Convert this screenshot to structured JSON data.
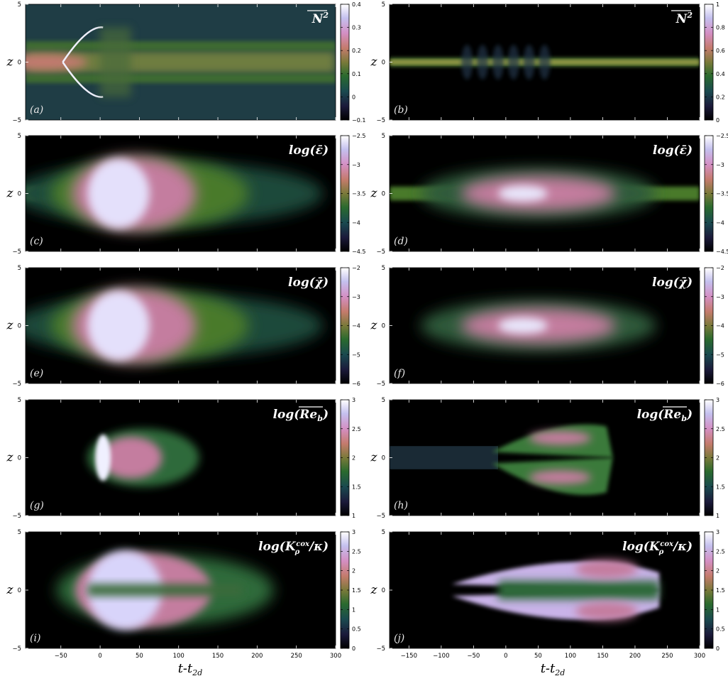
{
  "chart_data": {
    "type": "heatmap",
    "colormap": "cubehelix",
    "xlabel": "t-t",
    "xlabel_subscript": "2d",
    "ylabel": "z",
    "columns": [
      {
        "column": "left",
        "xlim": [
          -95,
          300
        ],
        "xticks": [
          -50,
          0,
          50,
          100,
          150,
          200,
          250,
          300
        ],
        "xtick_labels": [
          "−50",
          "0",
          "50",
          "100",
          "150",
          "200",
          "250",
          "300"
        ]
      },
      {
        "column": "right",
        "xlim": [
          -180,
          300
        ],
        "xticks": [
          -150,
          -100,
          -50,
          0,
          50,
          100,
          150,
          200,
          250,
          300
        ],
        "xtick_labels": [
          "−150",
          "−100",
          "−50",
          "0",
          "50",
          "100",
          "150",
          "200",
          "250",
          "300"
        ]
      }
    ],
    "ylim": [
      -5,
      5
    ],
    "yticks": [
      -5,
      0,
      5
    ],
    "ytick_labels": [
      "−5",
      "0",
      "5"
    ],
    "panels": [
      {
        "id": "a",
        "letter": "(a)",
        "title": "N² (overlined)",
        "quantity": "N2",
        "colorbar": {
          "min": -0.1,
          "max": 0.4,
          "ticks": [
            -0.1,
            0,
            0.1,
            0.2,
            0.3,
            0.4
          ],
          "tick_labels": [
            "−0.1",
            "0",
            "0.1",
            "0.2",
            "0.3",
            "0.4"
          ]
        }
      },
      {
        "id": "b",
        "letter": "(b)",
        "title": "N² (overlined)",
        "quantity": "N2",
        "colorbar": {
          "min": 0,
          "max": 1,
          "ticks": [
            0,
            0.2,
            0.4,
            0.6,
            0.8,
            1
          ],
          "tick_labels": [
            "0",
            "0.2",
            "0.4",
            "0.6",
            "0.8",
            "1"
          ]
        }
      },
      {
        "id": "c",
        "letter": "(c)",
        "title": "log(ε̄)",
        "quantity": "eps",
        "colorbar": {
          "min": -4.5,
          "max": -2.5,
          "ticks": [
            -4.5,
            -4,
            -3.5,
            -3,
            -2.5
          ],
          "tick_labels": [
            "−4.5",
            "−4",
            "−3.5",
            "−3",
            "−2.5"
          ]
        }
      },
      {
        "id": "d",
        "letter": "(d)",
        "title": "log(ε̄)",
        "quantity": "eps",
        "colorbar": {
          "min": -4.5,
          "max": -2.5,
          "ticks": [
            -4.5,
            -4,
            -3.5,
            -3,
            -2.5
          ],
          "tick_labels": [
            "−4.5",
            "−4",
            "−3.5",
            "−3",
            "−2.5"
          ]
        }
      },
      {
        "id": "e",
        "letter": "(e)",
        "title": "log(χ̄)",
        "quantity": "chi",
        "colorbar": {
          "min": -6,
          "max": -2,
          "ticks": [
            -6,
            -5,
            -4,
            -3,
            -2
          ],
          "tick_labels": [
            "−6",
            "−5",
            "−4",
            "−3",
            "−2"
          ]
        }
      },
      {
        "id": "f",
        "letter": "(f)",
        "title": "log(χ̄)",
        "quantity": "chi",
        "colorbar": {
          "min": -6,
          "max": -2,
          "ticks": [
            -6,
            -5,
            -4,
            -3,
            -2
          ],
          "tick_labels": [
            "−6",
            "−5",
            "−4",
            "−3",
            "−2"
          ]
        }
      },
      {
        "id": "g",
        "letter": "(g)",
        "title": "log(Re_b) (overlined)",
        "quantity": "Reb",
        "colorbar": {
          "min": 1,
          "max": 3,
          "ticks": [
            1,
            1.5,
            2,
            2.5,
            3
          ],
          "tick_labels": [
            "1",
            "1.5",
            "2",
            "2.5",
            "3"
          ]
        }
      },
      {
        "id": "h",
        "letter": "(h)",
        "title": "log(Re_b) (overlined)",
        "quantity": "Reb",
        "colorbar": {
          "min": 1,
          "max": 3,
          "ticks": [
            1,
            1.5,
            2,
            2.5,
            3
          ],
          "tick_labels": [
            "1",
            "1.5",
            "2",
            "2.5",
            "3"
          ]
        }
      },
      {
        "id": "i",
        "letter": "(i)",
        "title": "log(K_ρ^cox / κ)",
        "quantity": "K",
        "colorbar": {
          "min": 0,
          "max": 3,
          "ticks": [
            0,
            0.5,
            1,
            1.5,
            2,
            2.5,
            3
          ],
          "tick_labels": [
            "0",
            "0.5",
            "1",
            "1.5",
            "2",
            "2.5",
            "3"
          ]
        }
      },
      {
        "id": "j",
        "letter": "(j)",
        "title": "log(K_ρ^cox / κ)",
        "quantity": "K",
        "colorbar": {
          "min": 0,
          "max": 3,
          "ticks": [
            0,
            0.5,
            1,
            1.5,
            2,
            2.5,
            3
          ],
          "tick_labels": [
            "0",
            "0.5",
            "1",
            "1.5",
            "2",
            "2.5",
            "3"
          ]
        }
      }
    ]
  }
}
